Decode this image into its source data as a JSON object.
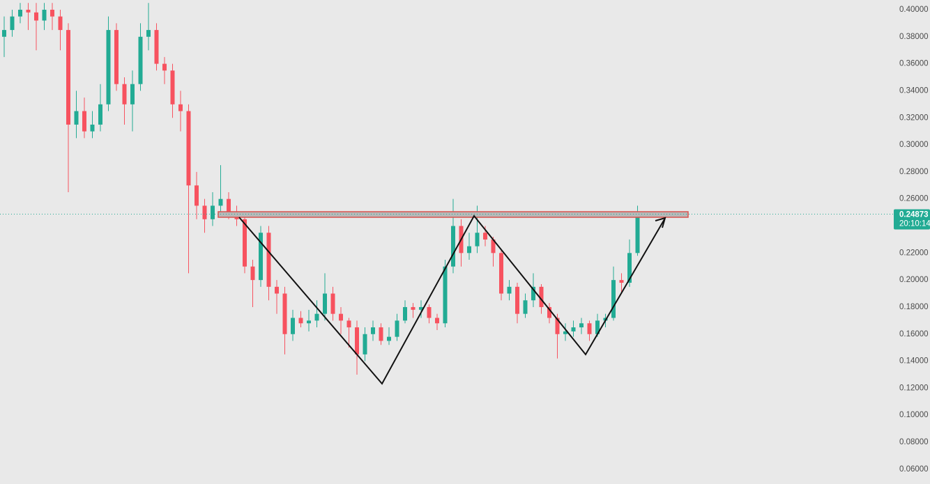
{
  "chart_data": {
    "type": "candlestick",
    "open": [
      0.38,
      0.385,
      0.395,
      0.4,
      0.398,
      0.392,
      0.4,
      0.395,
      0.385,
      0.315,
      0.325,
      0.31,
      0.315,
      0.33,
      0.385,
      0.345,
      0.33,
      0.345,
      0.38,
      0.385,
      0.36,
      0.355,
      0.33,
      0.325,
      0.27,
      0.255,
      0.245,
      0.255,
      0.26,
      0.25,
      0.245,
      0.21,
      0.2,
      0.235,
      0.195,
      0.19,
      0.16,
      0.172,
      0.168,
      0.17,
      0.175,
      0.19,
      0.175,
      0.17,
      0.165,
      0.145,
      0.16,
      0.165,
      0.155,
      0.158,
      0.17,
      0.18,
      0.178,
      0.18,
      0.172,
      0.168,
      0.21,
      0.24,
      0.22,
      0.225,
      0.235,
      0.23,
      0.22,
      0.19,
      0.195,
      0.175,
      0.185,
      0.195,
      0.18,
      0.172,
      0.16,
      0.162,
      0.165,
      0.168,
      0.16,
      0.17,
      0.172,
      0.2,
      0.198,
      0.22
    ],
    "high": [
      0.395,
      0.4,
      0.405,
      0.405,
      0.405,
      0.405,
      0.405,
      0.4,
      0.39,
      0.34,
      0.335,
      0.325,
      0.345,
      0.395,
      0.39,
      0.35,
      0.355,
      0.39,
      0.405,
      0.39,
      0.365,
      0.36,
      0.34,
      0.33,
      0.28,
      0.26,
      0.265,
      0.285,
      0.265,
      0.255,
      0.25,
      0.215,
      0.24,
      0.24,
      0.2,
      0.195,
      0.178,
      0.177,
      0.178,
      0.185,
      0.205,
      0.195,
      0.18,
      0.172,
      0.17,
      0.165,
      0.17,
      0.168,
      0.165,
      0.175,
      0.185,
      0.183,
      0.185,
      0.182,
      0.175,
      0.215,
      0.26,
      0.245,
      0.235,
      0.255,
      0.24,
      0.232,
      0.222,
      0.2,
      0.198,
      0.19,
      0.205,
      0.197,
      0.183,
      0.175,
      0.168,
      0.17,
      0.172,
      0.17,
      0.175,
      0.175,
      0.21,
      0.205,
      0.23,
      0.255
    ],
    "low": [
      0.365,
      0.38,
      0.39,
      0.385,
      0.37,
      0.385,
      0.385,
      0.37,
      0.265,
      0.305,
      0.305,
      0.305,
      0.31,
      0.325,
      0.34,
      0.315,
      0.31,
      0.34,
      0.37,
      0.355,
      0.345,
      0.32,
      0.31,
      0.205,
      0.245,
      0.235,
      0.24,
      0.25,
      0.245,
      0.24,
      0.205,
      0.18,
      0.195,
      0.185,
      0.175,
      0.145,
      0.155,
      0.165,
      0.162,
      0.165,
      0.17,
      0.17,
      0.16,
      0.15,
      0.13,
      0.14,
      0.155,
      0.152,
      0.152,
      0.155,
      0.168,
      0.172,
      0.172,
      0.168,
      0.163,
      0.165,
      0.205,
      0.21,
      0.215,
      0.22,
      0.225,
      0.21,
      0.185,
      0.185,
      0.168,
      0.172,
      0.18,
      0.175,
      0.168,
      0.142,
      0.155,
      0.158,
      0.16,
      0.155,
      0.158,
      0.165,
      0.17,
      0.19,
      0.195,
      0.218
    ],
    "close": [
      0.385,
      0.395,
      0.4,
      0.398,
      0.392,
      0.4,
      0.395,
      0.385,
      0.315,
      0.325,
      0.31,
      0.315,
      0.33,
      0.385,
      0.345,
      0.33,
      0.345,
      0.38,
      0.385,
      0.36,
      0.355,
      0.33,
      0.325,
      0.27,
      0.255,
      0.245,
      0.255,
      0.26,
      0.25,
      0.245,
      0.21,
      0.2,
      0.235,
      0.195,
      0.19,
      0.16,
      0.172,
      0.168,
      0.17,
      0.175,
      0.19,
      0.175,
      0.17,
      0.165,
      0.145,
      0.16,
      0.165,
      0.155,
      0.158,
      0.17,
      0.18,
      0.178,
      0.18,
      0.172,
      0.168,
      0.21,
      0.24,
      0.22,
      0.225,
      0.235,
      0.23,
      0.22,
      0.19,
      0.195,
      0.175,
      0.185,
      0.195,
      0.18,
      0.172,
      0.16,
      0.162,
      0.165,
      0.168,
      0.16,
      0.17,
      0.172,
      0.2,
      0.198,
      0.22,
      0.24873
    ],
    "up_color": "#22ab94",
    "down_color": "#f7525f",
    "last_time": "20:10:14",
    "ylim": [
      0.0491,
      0.4072
    ],
    "yticks": [
      {
        "value": 0.4,
        "label": "0.40000"
      },
      {
        "value": 0.38,
        "label": "0.38000"
      },
      {
        "value": 0.36,
        "label": "0.36000"
      },
      {
        "value": 0.34,
        "label": "0.34000"
      },
      {
        "value": 0.32,
        "label": "0.32000"
      },
      {
        "value": 0.3,
        "label": "0.30000"
      },
      {
        "value": 0.28,
        "label": "0.28000"
      },
      {
        "value": 0.26,
        "label": "0.26000"
      },
      {
        "value": 0.22,
        "label": "0.22000"
      },
      {
        "value": 0.2,
        "label": "0.20000"
      },
      {
        "value": 0.18,
        "label": "0.18000"
      },
      {
        "value": 0.16,
        "label": "0.16000"
      },
      {
        "value": 0.14,
        "label": "0.14000"
      },
      {
        "value": 0.12,
        "label": "0.12000"
      },
      {
        "value": 0.1,
        "label": "0.10000"
      },
      {
        "value": 0.08,
        "label": "0.08000"
      },
      {
        "value": 0.06,
        "label": "0.06000"
      }
    ]
  }
}
